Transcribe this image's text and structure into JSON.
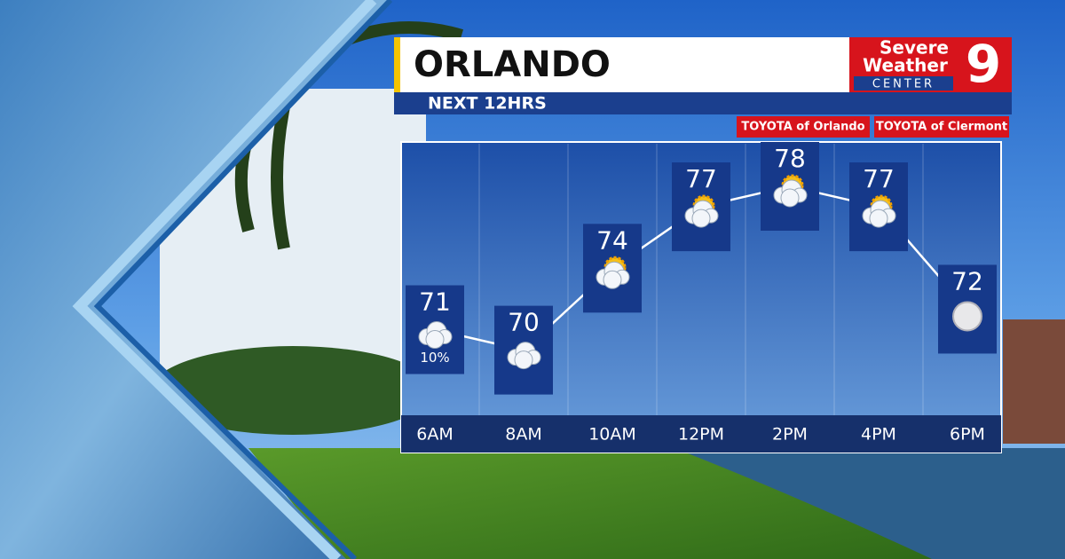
{
  "chart_data": {
    "type": "line",
    "title": "ORLANDO",
    "subtitle": "NEXT 12HRS",
    "categories": [
      "6AM",
      "8AM",
      "10AM",
      "12PM",
      "2PM",
      "4PM",
      "6PM"
    ],
    "values": [
      71,
      70,
      74,
      77,
      78,
      77,
      72
    ],
    "precip_labels": [
      "10%",
      null,
      null,
      null,
      null,
      null,
      null
    ],
    "ylim": [
      65,
      78
    ],
    "color": "#ffffff"
  },
  "logo": {
    "line1": "Severe",
    "line2": "Weather",
    "line3": "CENTER",
    "number": "9"
  },
  "sponsors": [
    "TOYOTA of Orlando",
    "TOYOTA of Clermont"
  ]
}
